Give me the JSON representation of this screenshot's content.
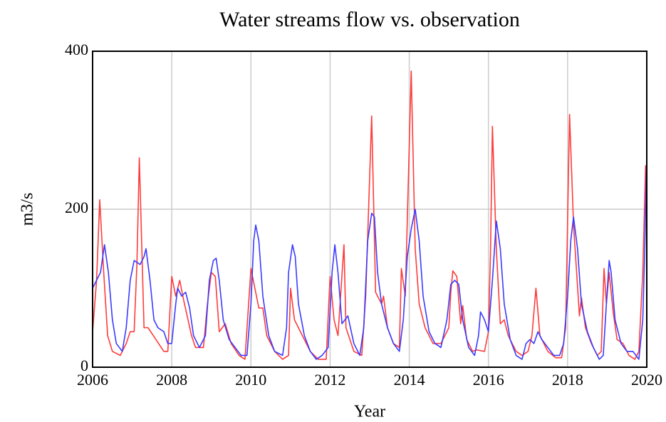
{
  "chart_data": {
    "type": "line",
    "title": "Water streams flow vs. observation",
    "x_label": "Year",
    "y_label": "m3/s",
    "xlim": [
      2006,
      2020
    ],
    "ylim": [
      0,
      400
    ],
    "xticks": [
      2006,
      2008,
      2010,
      2012,
      2014,
      2016,
      2018,
      2020
    ],
    "yticks": [
      0,
      200,
      400
    ],
    "grid": true,
    "series": [
      {
        "color": "#ff3b3b",
        "x": [
          2006.0,
          2006.1,
          2006.18,
          2006.28,
          2006.38,
          2006.5,
          2006.7,
          2006.85,
          2006.95,
          2007.05,
          2007.12,
          2007.18,
          2007.3,
          2007.4,
          2007.6,
          2007.8,
          2007.9,
          2008.0,
          2008.1,
          2008.2,
          2008.3,
          2008.5,
          2008.6,
          2008.8,
          2008.9,
          2009.0,
          2009.1,
          2009.2,
          2009.35,
          2009.5,
          2009.7,
          2009.85,
          2010.0,
          2010.1,
          2010.2,
          2010.3,
          2010.4,
          2010.6,
          2010.8,
          2010.95,
          2011.0,
          2011.1,
          2011.3,
          2011.5,
          2011.7,
          2011.9,
          2012.0,
          2012.1,
          2012.2,
          2012.35,
          2012.4,
          2012.6,
          2012.8,
          2012.9,
          2013.05,
          2013.15,
          2013.3,
          2013.35,
          2013.45,
          2013.6,
          2013.75,
          2013.8,
          2013.9,
          2014.05,
          2014.15,
          2014.25,
          2014.4,
          2014.6,
          2014.8,
          2014.9,
          2015.0,
          2015.05,
          2015.1,
          2015.2,
          2015.3,
          2015.35,
          2015.45,
          2015.6,
          2015.7,
          2015.9,
          2016.0,
          2016.05,
          2016.1,
          2016.2,
          2016.3,
          2016.4,
          2016.5,
          2016.7,
          2016.85,
          2017.0,
          2017.1,
          2017.2,
          2017.3,
          2017.5,
          2017.7,
          2017.85,
          2017.95,
          2018.05,
          2018.15,
          2018.3,
          2018.35,
          2018.45,
          2018.6,
          2018.75,
          2018.85,
          2018.92,
          2018.98,
          2019.05,
          2019.15,
          2019.25,
          2019.4,
          2019.55,
          2019.7,
          2019.8,
          2019.9,
          2019.97,
          2020.0
        ],
        "values": [
          45,
          110,
          212,
          120,
          40,
          20,
          15,
          30,
          45,
          45,
          130,
          265,
          50,
          50,
          35,
          20,
          20,
          115,
          90,
          110,
          85,
          40,
          25,
          25,
          80,
          120,
          115,
          45,
          55,
          30,
          15,
          10,
          125,
          100,
          75,
          75,
          40,
          20,
          10,
          15,
          100,
          60,
          40,
          20,
          10,
          10,
          115,
          60,
          40,
          155,
          50,
          20,
          15,
          90,
          318,
          95,
          80,
          90,
          50,
          30,
          25,
          125,
          90,
          375,
          150,
          80,
          50,
          30,
          30,
          40,
          50,
          95,
          122,
          115,
          55,
          78,
          35,
          20,
          22,
          20,
          45,
          140,
          305,
          150,
          55,
          60,
          40,
          20,
          15,
          20,
          40,
          100,
          40,
          20,
          12,
          12,
          50,
          320,
          180,
          65,
          88,
          50,
          30,
          15,
          20,
          125,
          80,
          120,
          70,
          35,
          30,
          15,
          10,
          20,
          120,
          255,
          180
        ]
      },
      {
        "color": "#3b3bff",
        "x": [
          2006.0,
          2006.1,
          2006.2,
          2006.3,
          2006.4,
          2006.5,
          2006.6,
          2006.75,
          2006.85,
          2006.95,
          2007.05,
          2007.2,
          2007.3,
          2007.35,
          2007.45,
          2007.55,
          2007.65,
          2007.8,
          2007.9,
          2008.0,
          2008.1,
          2008.15,
          2008.25,
          2008.35,
          2008.45,
          2008.55,
          2008.7,
          2008.85,
          2008.95,
          2009.05,
          2009.12,
          2009.2,
          2009.3,
          2009.45,
          2009.6,
          2009.75,
          2009.9,
          2010.0,
          2010.07,
          2010.12,
          2010.2,
          2010.3,
          2010.45,
          2010.6,
          2010.8,
          2010.9,
          2010.95,
          2011.05,
          2011.12,
          2011.2,
          2011.35,
          2011.5,
          2011.65,
          2011.8,
          2011.95,
          2012.05,
          2012.12,
          2012.2,
          2012.3,
          2012.45,
          2012.6,
          2012.75,
          2012.85,
          2012.95,
          2013.05,
          2013.12,
          2013.2,
          2013.3,
          2013.45,
          2013.6,
          2013.75,
          2013.85,
          2013.95,
          2014.05,
          2014.15,
          2014.25,
          2014.35,
          2014.5,
          2014.65,
          2014.8,
          2014.95,
          2015.05,
          2015.15,
          2015.25,
          2015.35,
          2015.5,
          2015.65,
          2015.75,
          2015.8,
          2015.9,
          2016.0,
          2016.1,
          2016.2,
          2016.3,
          2016.4,
          2016.55,
          2016.7,
          2016.85,
          2016.95,
          2017.05,
          2017.15,
          2017.25,
          2017.35,
          2017.5,
          2017.65,
          2017.8,
          2017.9,
          2018.0,
          2018.08,
          2018.15,
          2018.25,
          2018.35,
          2018.5,
          2018.65,
          2018.8,
          2018.9,
          2018.98,
          2019.05,
          2019.1,
          2019.2,
          2019.35,
          2019.5,
          2019.65,
          2019.8,
          2019.9,
          2019.95,
          2020.0
        ],
        "values": [
          100,
          110,
          120,
          155,
          120,
          60,
          30,
          20,
          50,
          110,
          135,
          130,
          140,
          150,
          110,
          60,
          50,
          45,
          30,
          30,
          80,
          100,
          90,
          95,
          75,
          40,
          25,
          40,
          110,
          135,
          138,
          110,
          60,
          35,
          25,
          15,
          15,
          80,
          160,
          180,
          160,
          90,
          40,
          20,
          15,
          50,
          120,
          155,
          140,
          80,
          40,
          20,
          10,
          15,
          25,
          120,
          155,
          120,
          55,
          65,
          30,
          15,
          50,
          160,
          195,
          190,
          120,
          80,
          50,
          30,
          20,
          60,
          140,
          175,
          200,
          160,
          90,
          45,
          30,
          25,
          60,
          105,
          110,
          105,
          60,
          25,
          15,
          40,
          70,
          60,
          45,
          110,
          185,
          150,
          80,
          35,
          15,
          10,
          30,
          35,
          30,
          45,
          35,
          25,
          15,
          15,
          30,
          90,
          160,
          190,
          150,
          80,
          45,
          25,
          10,
          15,
          80,
          135,
          120,
          60,
          30,
          20,
          20,
          10,
          60,
          150,
          270
        ]
      }
    ]
  }
}
